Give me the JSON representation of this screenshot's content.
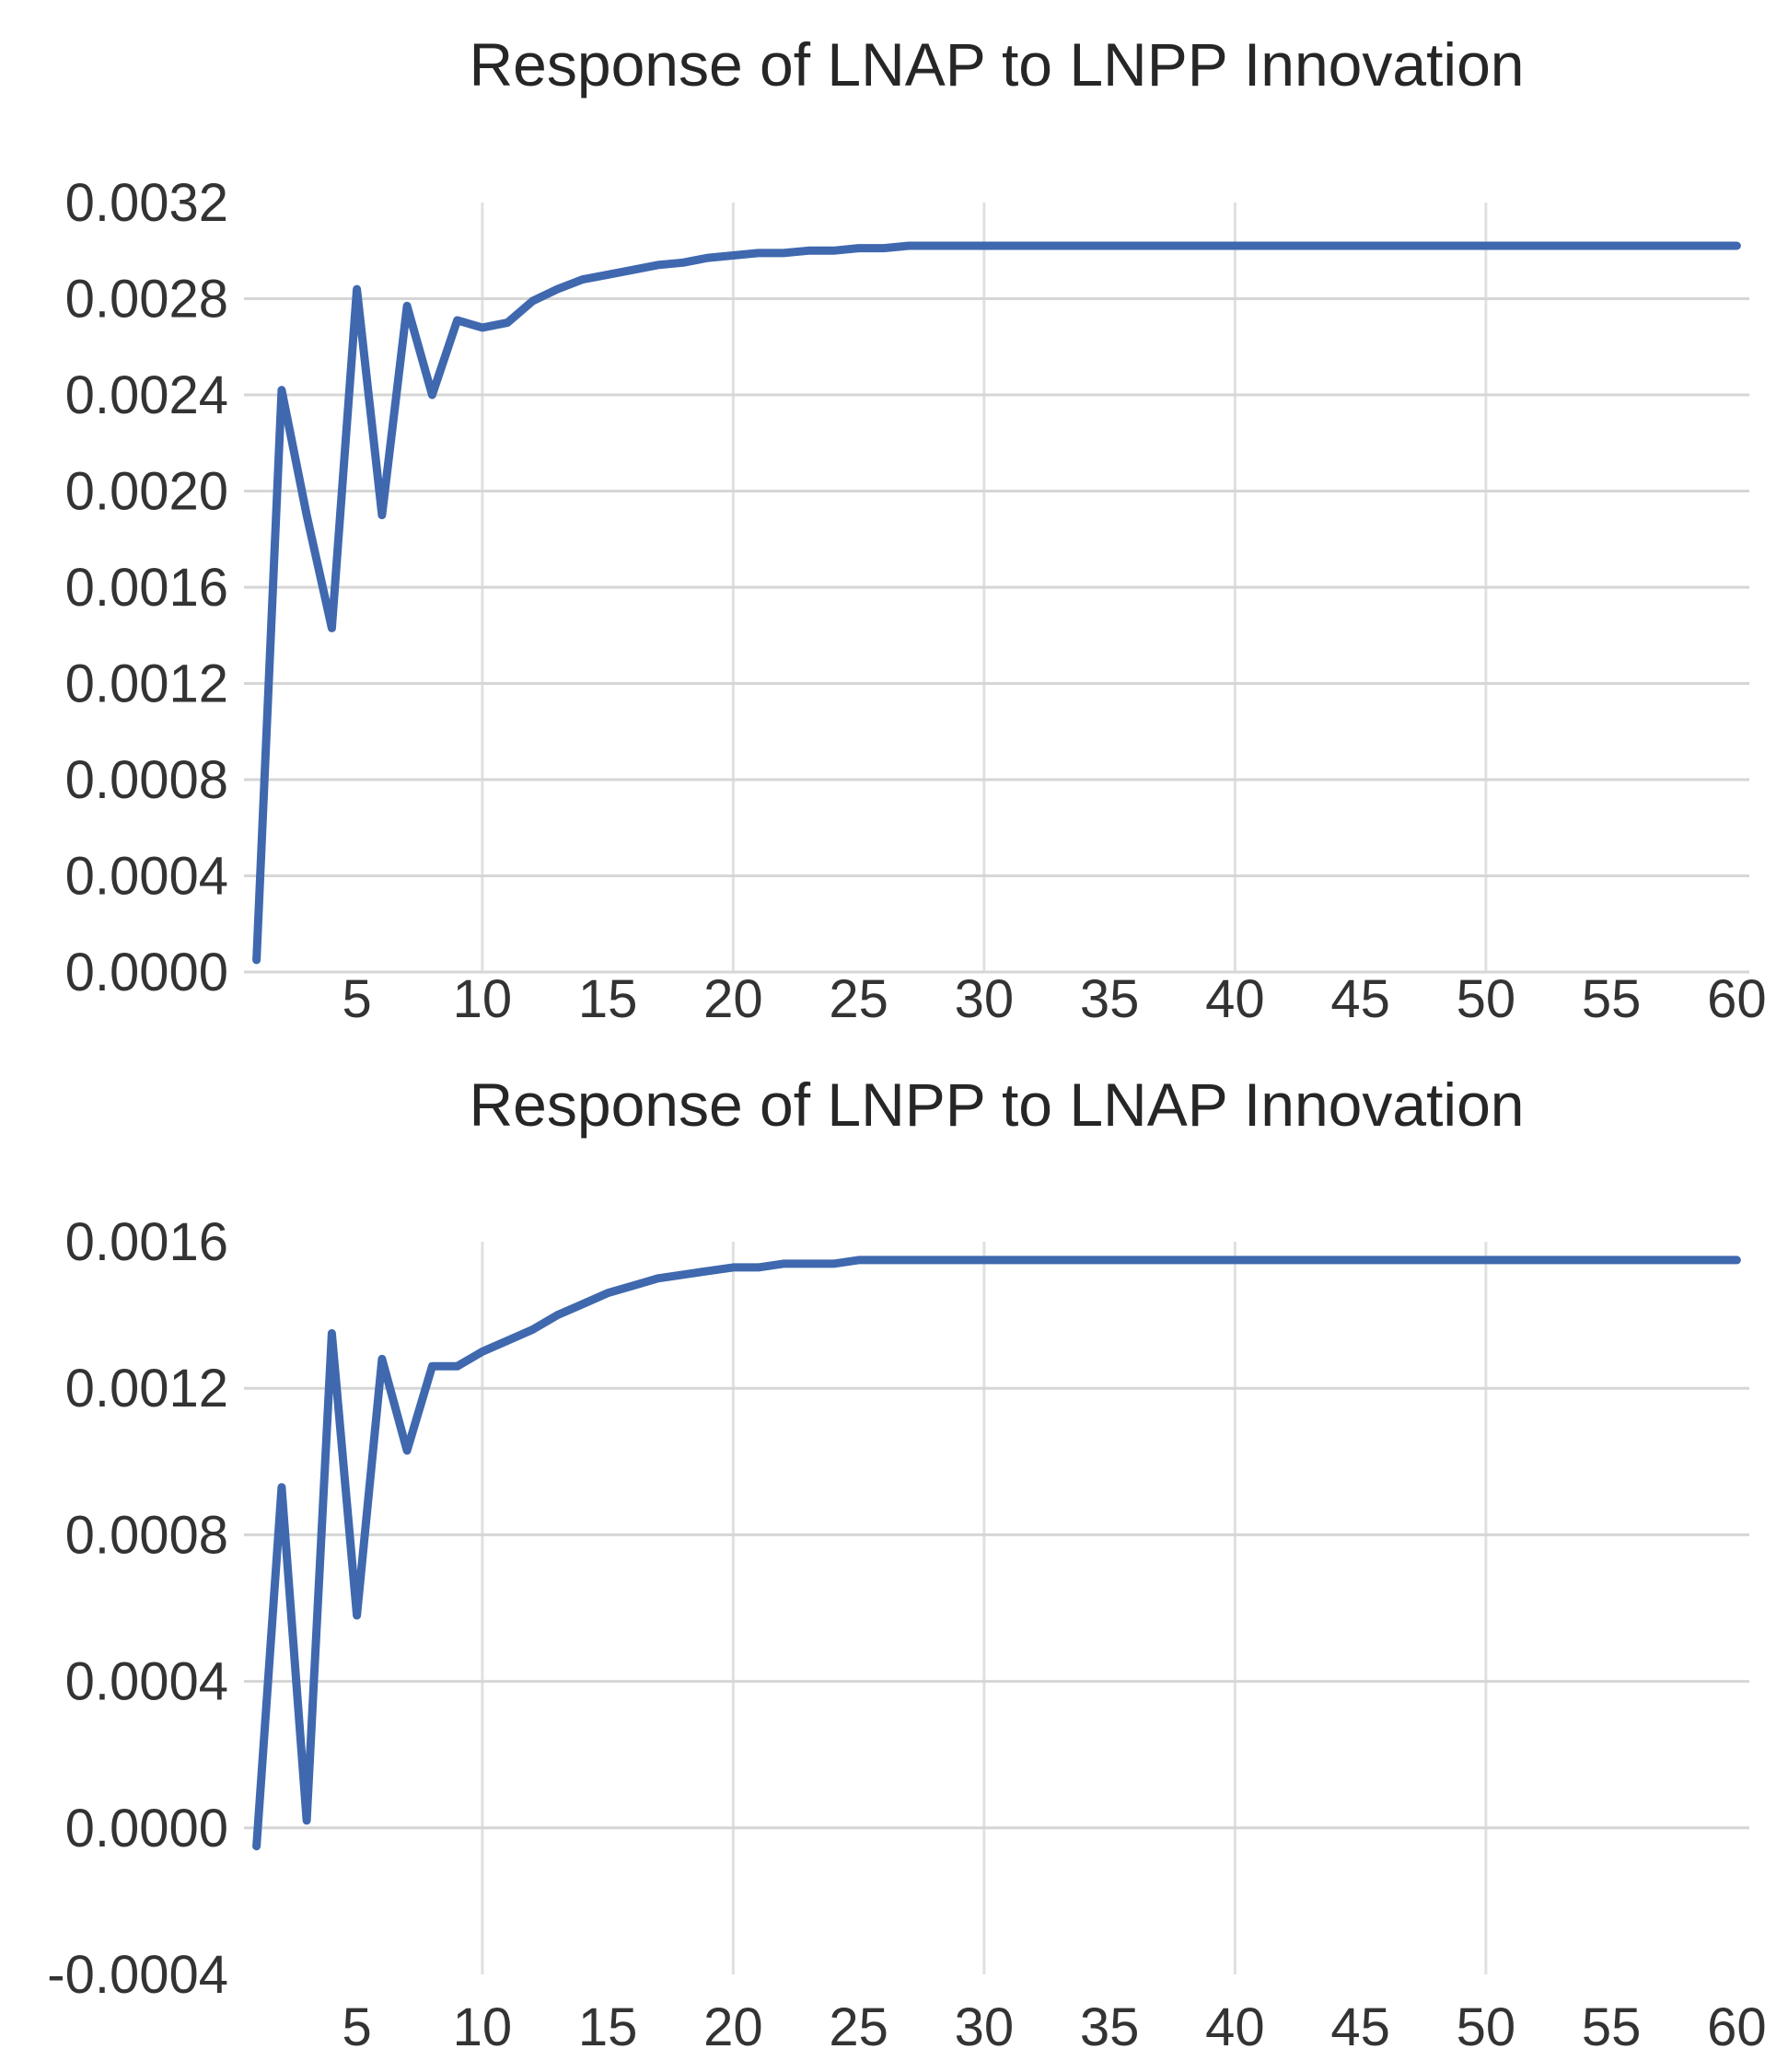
{
  "page": {
    "background": "#FFFFFF"
  },
  "colors": {
    "line": "#3F68AE",
    "gridline_horizontal": "#D6D6D6",
    "gridline_vertical": "#E0E0E0",
    "title_text": "#262626",
    "tick_text": "#333333"
  },
  "chart_data": [
    {
      "type": "line",
      "title": "Response of LNAP to LNPP Innovation",
      "xlabel": "",
      "ylabel": "",
      "legend": "none",
      "grid": "on",
      "ylim": [
        0.0,
        0.0032
      ],
      "ytick_labels": [
        "0.0032",
        "0.0028",
        "0.0024",
        "0.0020",
        "0.0016",
        "0.0012",
        "0.0008",
        "0.0004",
        "0.0000"
      ],
      "ytick_values": [
        0.0032,
        0.0028,
        0.0024,
        0.002,
        0.0016,
        0.0012,
        0.0008,
        0.0004,
        0.0
      ],
      "xtick_labels": [
        "5",
        "10",
        "15",
        "20",
        "25",
        "30",
        "35",
        "40",
        "45",
        "50",
        "55",
        "60"
      ],
      "xtick_values": [
        5,
        10,
        15,
        20,
        25,
        30,
        35,
        40,
        45,
        50,
        55,
        60
      ],
      "h_gridline_values": [
        0.0028,
        0.0024,
        0.002,
        0.0016,
        0.0012,
        0.0008,
        0.0004,
        0.0
      ],
      "v_gridline_values": [
        10,
        20,
        30,
        40,
        50
      ],
      "x": [
        1,
        2,
        3,
        4,
        5,
        6,
        7,
        8,
        9,
        10,
        11,
        12,
        13,
        14,
        15,
        16,
        17,
        18,
        19,
        20,
        21,
        22,
        23,
        24,
        25,
        26,
        27,
        28,
        29,
        30,
        31,
        32,
        33,
        34,
        35,
        36,
        37,
        38,
        39,
        40,
        41,
        42,
        43,
        44,
        45,
        46,
        47,
        48,
        49,
        50,
        51,
        52,
        53,
        54,
        55,
        56,
        57,
        58,
        59,
        60
      ],
      "series": [
        {
          "name": "Response of LNAP to LNPP Innovation",
          "values": [
            5e-05,
            0.00242,
            0.0019,
            0.00143,
            0.00284,
            0.0019,
            0.00277,
            0.0024,
            0.00271,
            0.00268,
            0.0027,
            0.00279,
            0.00284,
            0.00288,
            0.0029,
            0.00292,
            0.00294,
            0.00295,
            0.00297,
            0.00298,
            0.00299,
            0.00299,
            0.003,
            0.003,
            0.00301,
            0.00301,
            0.00302,
            0.00302,
            0.00302,
            0.00302,
            0.00302,
            0.00302,
            0.00302,
            0.00302,
            0.00302,
            0.00302,
            0.00302,
            0.00302,
            0.00302,
            0.00302,
            0.00302,
            0.00302,
            0.00302,
            0.00302,
            0.00302,
            0.00302,
            0.00302,
            0.00302,
            0.00302,
            0.00302,
            0.00302,
            0.00302,
            0.00302,
            0.00302,
            0.00302,
            0.00302,
            0.00302,
            0.00302,
            0.00302,
            0.00302
          ]
        }
      ]
    },
    {
      "type": "line",
      "title": "Response of LNPP to LNAP Innovation",
      "xlabel": "",
      "ylabel": "",
      "legend": "none",
      "grid": "on",
      "ylim": [
        -0.0004,
        0.0016
      ],
      "ytick_labels": [
        "0.0016",
        "0.0012",
        "0.0008",
        "0.0004",
        "0.0000",
        "-0.0004"
      ],
      "ytick_values": [
        0.0016,
        0.0012,
        0.0008,
        0.0004,
        0.0,
        -0.0004
      ],
      "xtick_labels": [
        "5",
        "10",
        "15",
        "20",
        "25",
        "30",
        "35",
        "40",
        "45",
        "50",
        "55",
        "60"
      ],
      "xtick_values": [
        5,
        10,
        15,
        20,
        25,
        30,
        35,
        40,
        45,
        50,
        55,
        60
      ],
      "h_gridline_values": [
        0.0012,
        0.0008,
        0.0004,
        0.0
      ],
      "v_gridline_values": [
        10,
        20,
        30,
        40,
        50
      ],
      "x": [
        1,
        2,
        3,
        4,
        5,
        6,
        7,
        8,
        9,
        10,
        11,
        12,
        13,
        14,
        15,
        16,
        17,
        18,
        19,
        20,
        21,
        22,
        23,
        24,
        25,
        26,
        27,
        28,
        29,
        30,
        31,
        32,
        33,
        34,
        35,
        36,
        37,
        38,
        39,
        40,
        41,
        42,
        43,
        44,
        45,
        46,
        47,
        48,
        49,
        50,
        51,
        52,
        53,
        54,
        55,
        56,
        57,
        58,
        59,
        60
      ],
      "series": [
        {
          "name": "Response of LNPP to LNAP Innovation",
          "values": [
            -5e-05,
            0.00093,
            2e-05,
            0.00135,
            0.00058,
            0.00128,
            0.00103,
            0.00126,
            0.00126,
            0.0013,
            0.00133,
            0.00136,
            0.0014,
            0.00143,
            0.00146,
            0.00148,
            0.0015,
            0.00151,
            0.00152,
            0.00153,
            0.00153,
            0.00154,
            0.00154,
            0.00154,
            0.00155,
            0.00155,
            0.00155,
            0.00155,
            0.00155,
            0.00155,
            0.00155,
            0.00155,
            0.00155,
            0.00155,
            0.00155,
            0.00155,
            0.00155,
            0.00155,
            0.00155,
            0.00155,
            0.00155,
            0.00155,
            0.00155,
            0.00155,
            0.00155,
            0.00155,
            0.00155,
            0.00155,
            0.00155,
            0.00155,
            0.00155,
            0.00155,
            0.00155,
            0.00155,
            0.00155,
            0.00155,
            0.00155,
            0.00155,
            0.00155,
            0.00155
          ]
        }
      ]
    }
  ]
}
